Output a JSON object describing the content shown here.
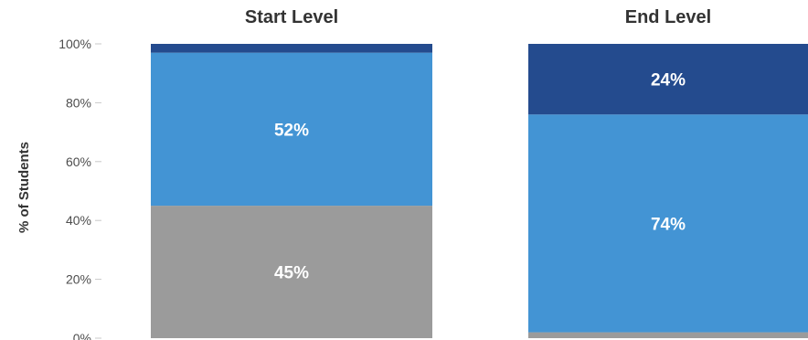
{
  "chart_data": {
    "type": "bar",
    "stacked": true,
    "ylabel": "% of Students",
    "ylim": [
      0,
      100
    ],
    "yticks": [
      "0%",
      "20%",
      "40%",
      "60%",
      "80%",
      "100%"
    ],
    "grid": false,
    "legend": "none",
    "colors": [
      "#9b9b9b",
      "#4394d4",
      "#244b8e"
    ],
    "panels": [
      {
        "title": "Start Level",
        "segments": [
          {
            "value": 45,
            "label": "45%",
            "color": "#9b9b9b"
          },
          {
            "value": 52,
            "label": "52%",
            "color": "#4394d4"
          },
          {
            "value": 3,
            "label": "",
            "color": "#244b8e"
          }
        ]
      },
      {
        "title": "End Level",
        "segments": [
          {
            "value": 2,
            "label": "",
            "color": "#9b9b9b"
          },
          {
            "value": 74,
            "label": "74%",
            "color": "#4394d4"
          },
          {
            "value": 24,
            "label": "24%",
            "color": "#244b8e"
          }
        ]
      }
    ]
  }
}
